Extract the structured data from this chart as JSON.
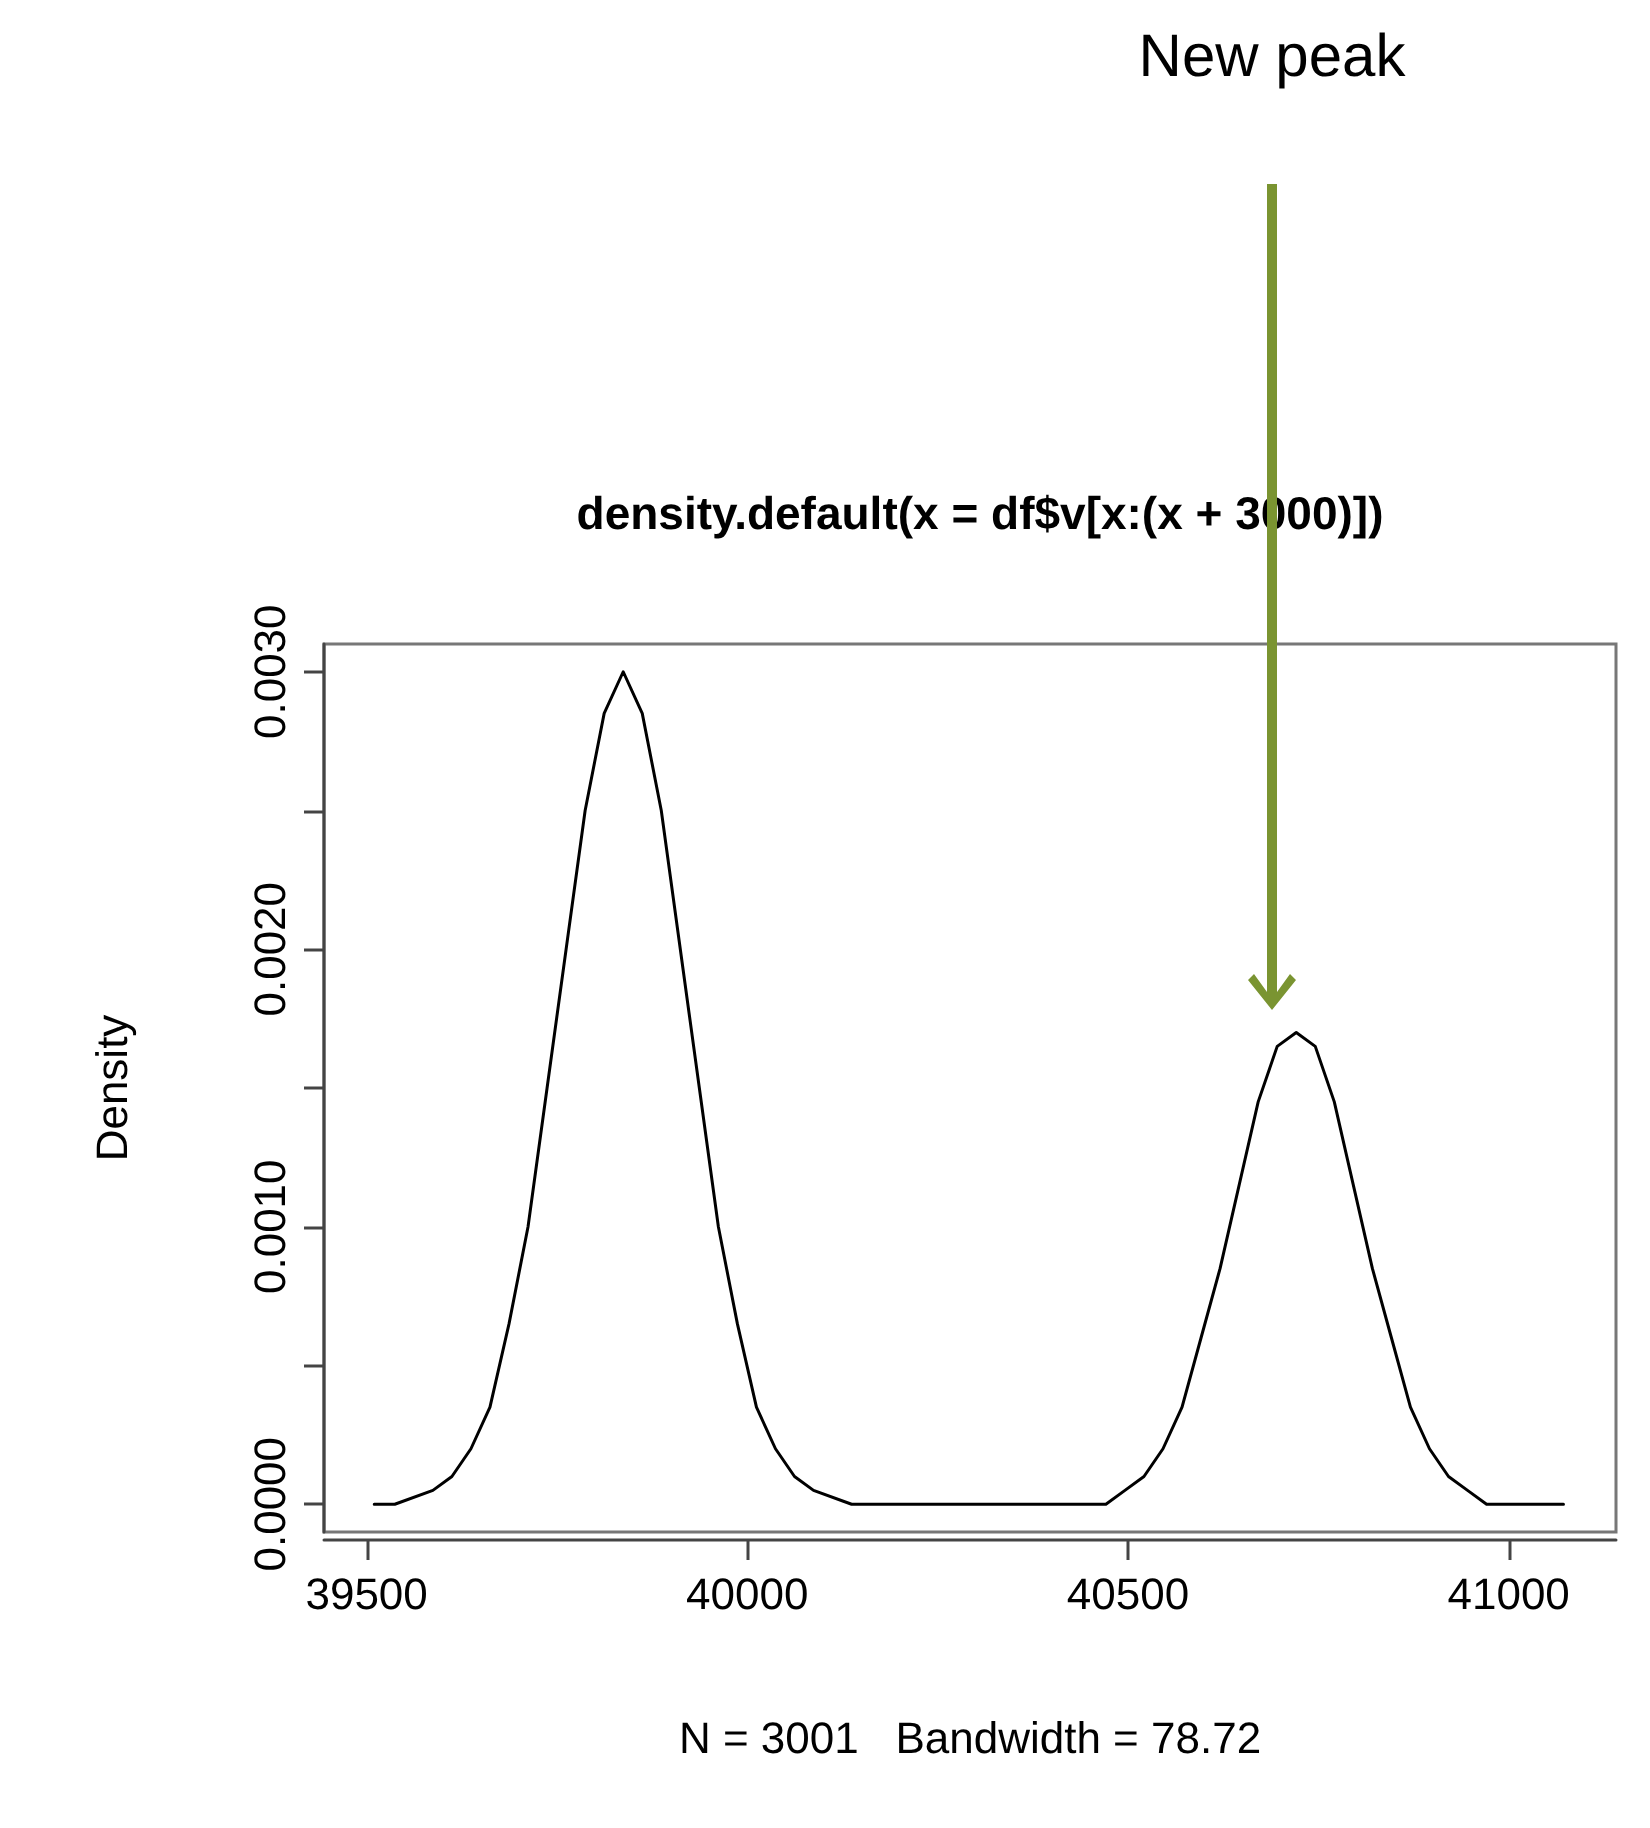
{
  "chart_data": {
    "type": "line",
    "title": "density.default(x = df$v[x:(x + 3000)])",
    "xlabel": "N = 3001   Bandwidth = 78.72",
    "ylabel": "Density",
    "x": [
      39510,
      39537,
      39587,
      39612,
      39637,
      39662,
      39687,
      39712,
      39737,
      39762,
      39787,
      39812,
      39837,
      39862,
      39887,
      39912,
      39937,
      39962,
      39987,
      40012,
      40037,
      40062,
      40087,
      40137,
      40187,
      40371,
      40421,
      40471,
      40496,
      40521,
      40546,
      40571,
      40596,
      40621,
      40646,
      40671,
      40696,
      40721,
      40746,
      40771,
      40796,
      40821,
      40846,
      40871,
      40896,
      40921,
      40946,
      40971,
      41021,
      41072
    ],
    "series": [
      {
        "color": "#000000",
        "values": [
          0,
          0,
          5e-05,
          0.0001,
          0.0002,
          0.00035,
          0.00065,
          0.001,
          0.0015,
          0.002,
          0.0025,
          0.00285,
          0.003,
          0.00285,
          0.0025,
          0.002,
          0.0015,
          0.001,
          0.00065,
          0.00035,
          0.0002,
          0.0001,
          5e-05,
          0,
          0,
          0,
          0,
          0,
          5e-05,
          0.0001,
          0.0002,
          0.00035,
          0.0006,
          0.00085,
          0.00115,
          0.00145,
          0.00165,
          0.0017,
          0.00165,
          0.00145,
          0.00115,
          0.00085,
          0.0006,
          0.00035,
          0.0002,
          0.0001,
          5e-05,
          0,
          0,
          0
        ]
      }
    ],
    "xlim": [
      39444,
      41141
    ],
    "xticks": [
      39500,
      40000,
      40500,
      41000
    ],
    "ylim": [
      -0.0001,
      0.0031
    ],
    "yticks": [
      {
        "value": 0,
        "label": "0.0000"
      },
      {
        "value": 0.0005,
        "label": null
      },
      {
        "value": 0.001,
        "label": "0.0010"
      },
      {
        "value": 0.0015,
        "label": null
      },
      {
        "value": 0.002,
        "label": "0.0020"
      },
      {
        "value": 0.0025,
        "label": null
      },
      {
        "value": 0.003,
        "label": "0.0030"
      }
    ],
    "annotations": [
      "New peak"
    ],
    "grid": false,
    "marker": "none",
    "line_style": "solid"
  }
}
